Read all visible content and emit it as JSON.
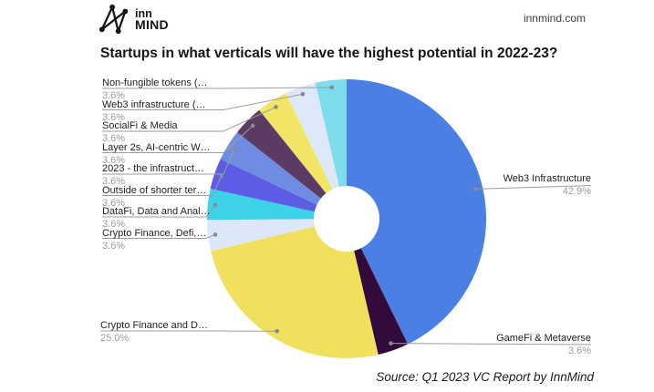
{
  "header": {
    "logo_line1": "inn",
    "logo_line2": "MIND",
    "site_url": "innmind.com"
  },
  "title": "Startups in what verticals will have the highest potential in 2022-23?",
  "source_note": "Source: Q1 2023 VC Report by InnMind",
  "colors": {
    "background": "#ffffff",
    "leader_line": "#9e9e9e",
    "dot": "#8a8a8a",
    "hole": "#ffffff",
    "title_text": "#141414",
    "label_text": "#1f1f1f",
    "pct_text": "#9b9b9b"
  },
  "chart_data": {
    "type": "pie",
    "subtype": "donut",
    "title": "Startups in what verticals will have the highest potential in 2022-23?",
    "start_angle_deg": 0,
    "direction": "clockwise",
    "hole_ratio": 0.235,
    "legend_position": "callout-labels",
    "slices": [
      {
        "label": "Web3 Infrastructure",
        "value": 42.9,
        "pct_label": "42.9%",
        "color": "#4a80e4"
      },
      {
        "label": "GameFi & Metaverse",
        "value": 3.6,
        "pct_label": "3.6%",
        "color": "#320b3c"
      },
      {
        "label": "Crypto Finance and D…",
        "value": 25.0,
        "pct_label": "25.0%",
        "color": "#f0e05e"
      },
      {
        "label": "Crypto Finance, Defi,…",
        "value": 3.6,
        "pct_label": "3.6%",
        "color": "#dce8fa"
      },
      {
        "label": "DataFi, Data and Anal…",
        "value": 3.6,
        "pct_label": "3.6%",
        "color": "#3ed2e8"
      },
      {
        "label": "Outside of shorter ter…",
        "value": 3.6,
        "pct_label": "3.6%",
        "color": "#5c5ce4"
      },
      {
        "label": "2023 - the infrastruct…",
        "value": 3.6,
        "pct_label": "3.6%",
        "color": "#6e8de2"
      },
      {
        "label": "Layer 2s, AI-centric W…",
        "value": 3.6,
        "pct_label": "3.6%",
        "color": "#5b3a64"
      },
      {
        "label": "SocialFi & Media",
        "value": 3.6,
        "pct_label": "3.6%",
        "color": "#f2e465"
      },
      {
        "label": "Web3 infrastructure (…",
        "value": 3.6,
        "pct_label": "3.6%",
        "color": "#dde9f9"
      },
      {
        "label": "Non-fungible tokens (…",
        "value": 3.6,
        "pct_label": "3.6%",
        "color": "#7edcec"
      }
    ]
  }
}
